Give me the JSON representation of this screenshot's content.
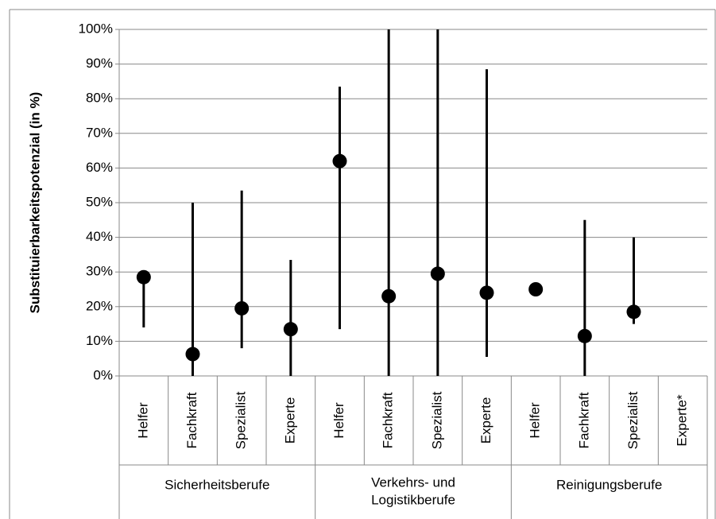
{
  "chart_data": {
    "type": "dot-range",
    "y_label": "Substituierbarkeitspotenzial (in %)",
    "groups": [
      {
        "name": [
          "Sicherheitsberufe"
        ],
        "categories": [
          "Helfer",
          "Fachkraft",
          "Spezialist",
          "Experte"
        ]
      },
      {
        "name": [
          "Verkehrs- und",
          "Logistikberufe"
        ],
        "categories": [
          "Helfer",
          "Fachkraft",
          "Spezialist",
          "Experte"
        ]
      },
      {
        "name": [
          "Reinigungsberufe"
        ],
        "categories": [
          "Helfer",
          "Fachkraft",
          "Spezialist",
          "Experte*"
        ]
      }
    ],
    "values": [
      28.5,
      6.3,
      19.5,
      13.5,
      62,
      23,
      29.5,
      24,
      25,
      11.5,
      18.5,
      null
    ],
    "min": [
      14,
      0,
      8,
      0,
      13.5,
      0,
      0,
      5.5,
      25,
      0,
      15,
      null
    ],
    "max": [
      28.5,
      50,
      53.5,
      33.5,
      83.5,
      100,
      100,
      88.5,
      25,
      45,
      40,
      null
    ],
    "color": "#000000",
    "ylim": [
      0,
      100
    ],
    "yticks": [
      {
        "value": 0,
        "label": "0%"
      },
      {
        "value": 10,
        "label": "10%"
      },
      {
        "value": 20,
        "label": "20%"
      },
      {
        "value": 30,
        "label": "30%"
      },
      {
        "value": 40,
        "label": "40%"
      },
      {
        "value": 50,
        "label": "50%"
      },
      {
        "value": 60,
        "label": "60%"
      },
      {
        "value": 70,
        "label": "70%"
      },
      {
        "value": 80,
        "label": "80%"
      },
      {
        "value": 90,
        "label": "90%"
      },
      {
        "value": 100,
        "label": "100%"
      }
    ],
    "grid": true
  }
}
